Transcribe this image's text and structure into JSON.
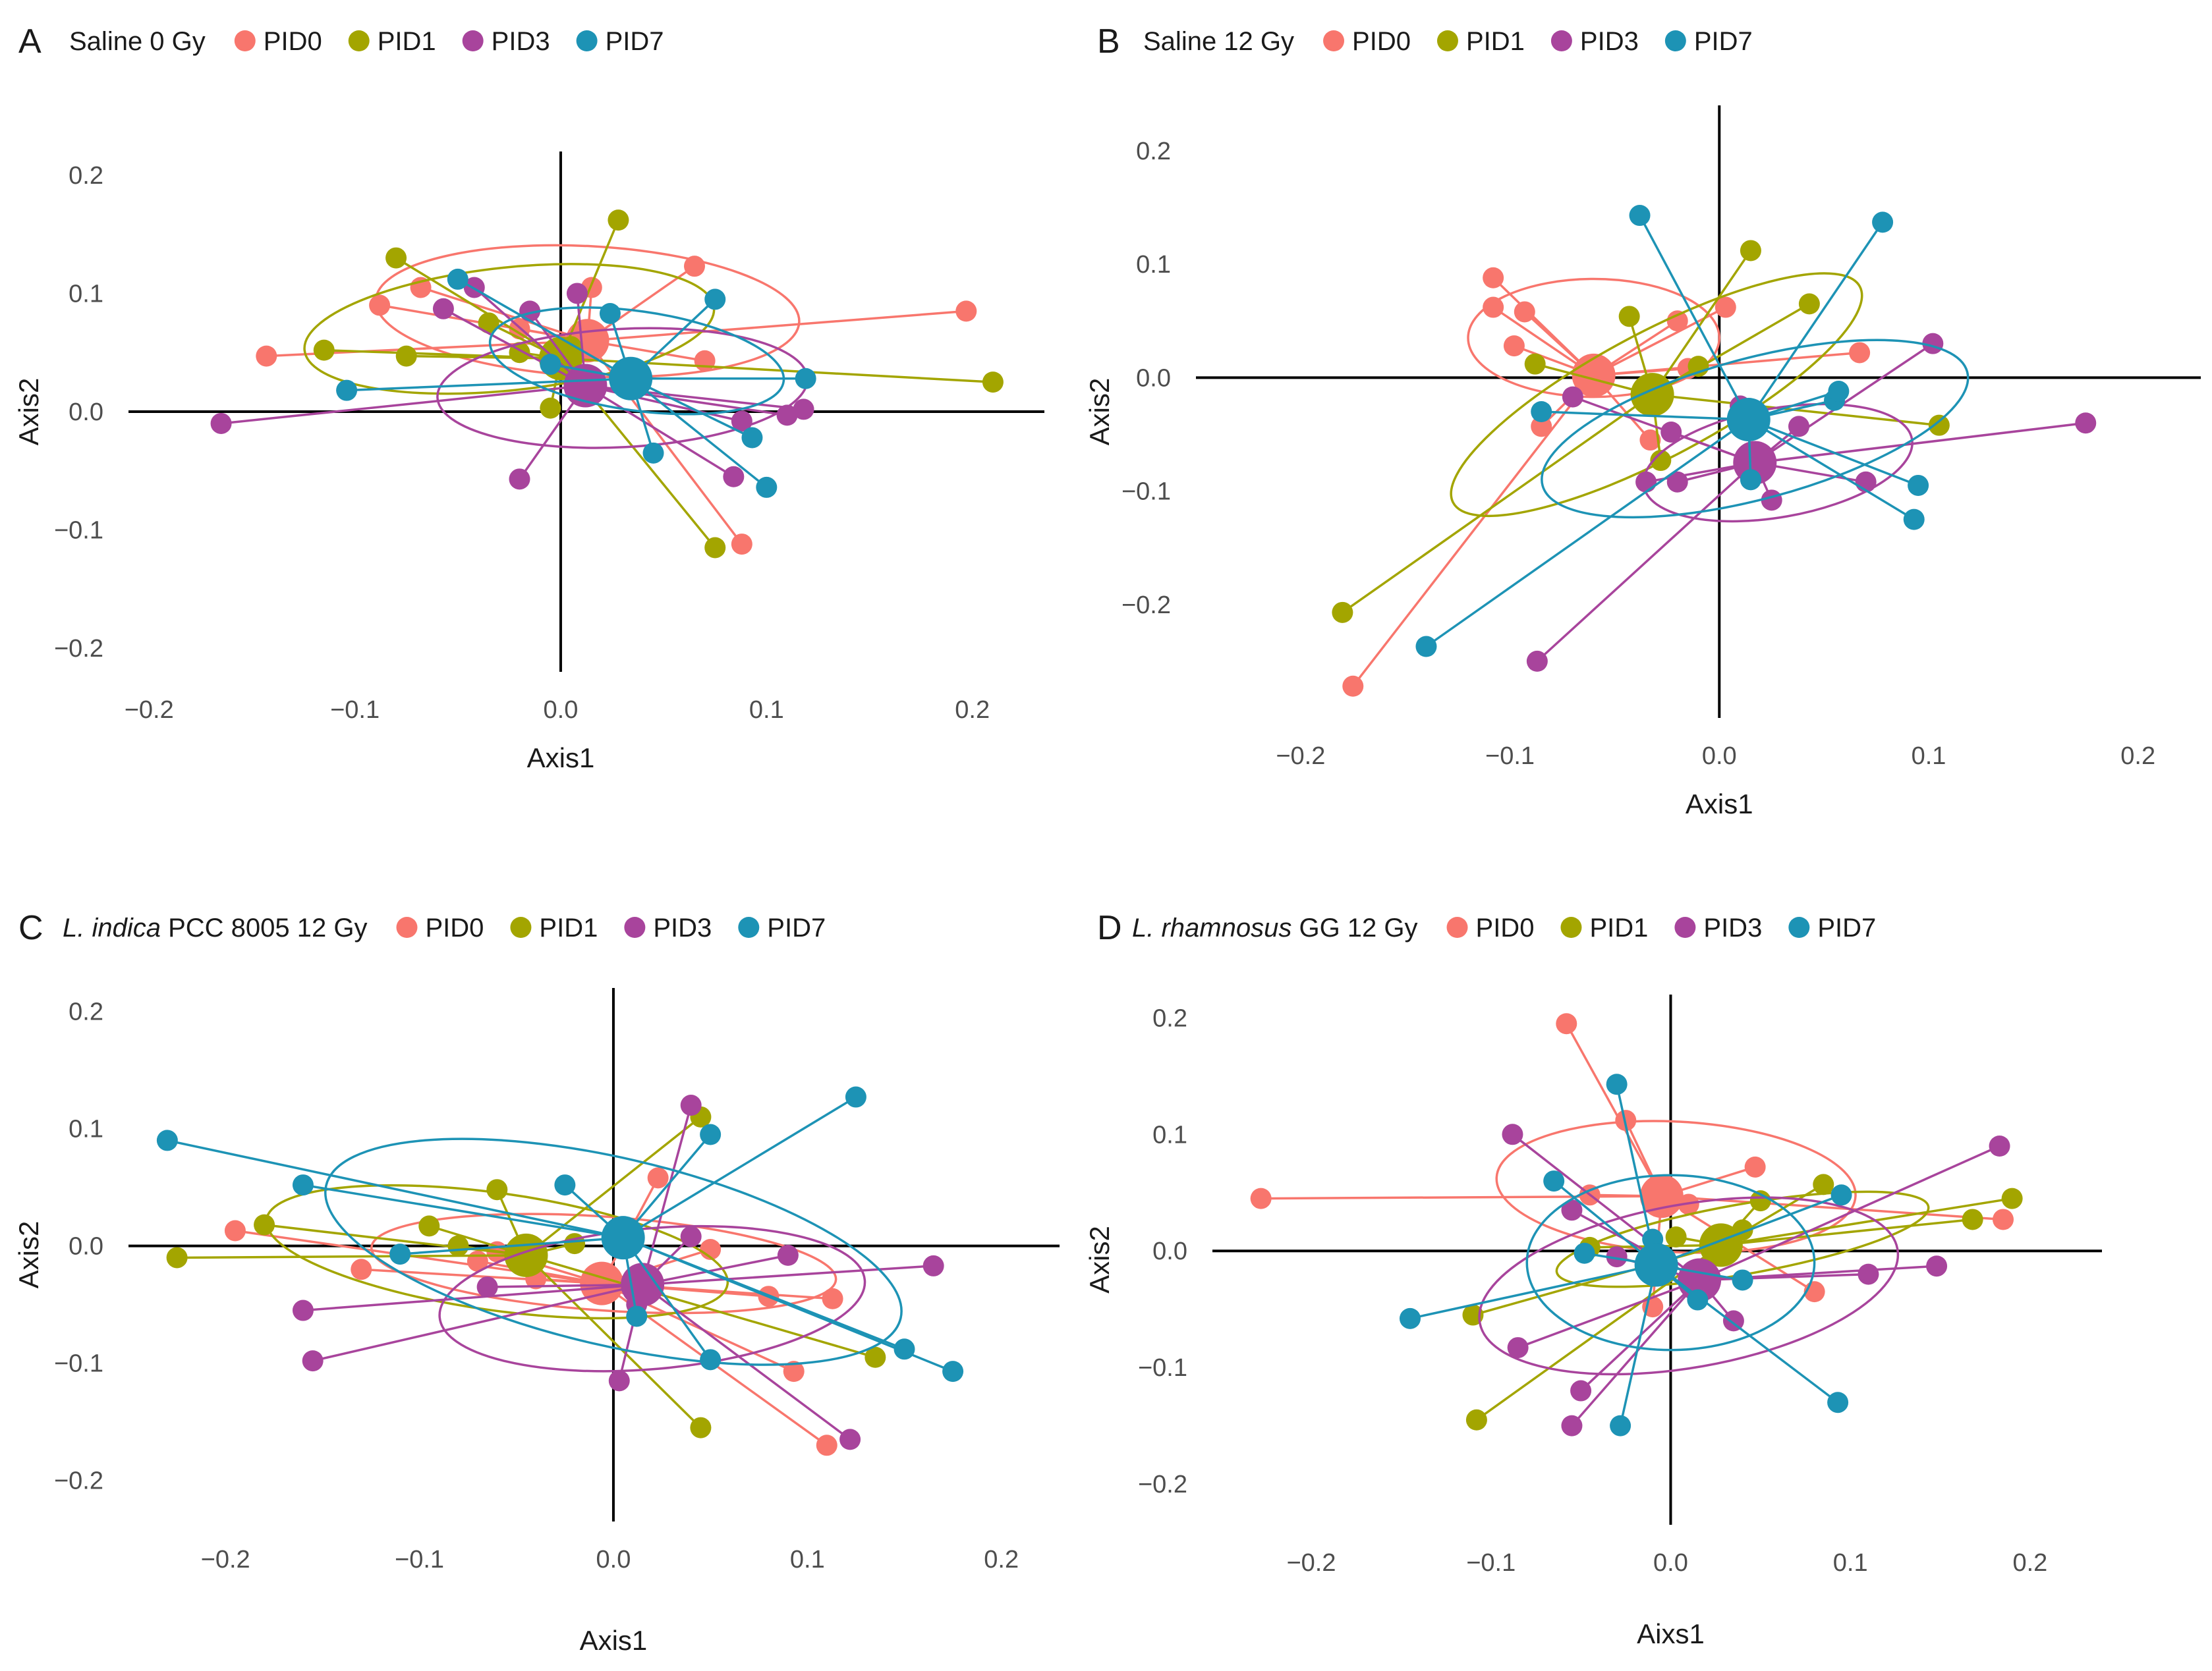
{
  "figure": {
    "colors": {
      "PID0": "#F8766D",
      "PID1": "#A3A500",
      "PID3": "#A8449C",
      "PID7": "#1D93B5"
    },
    "legend_groups": [
      "PID0",
      "PID1",
      "PID3",
      "PID7"
    ]
  },
  "chart_data": [
    {
      "panel": "A",
      "type": "scatter",
      "title_parts": [
        {
          "text": "Saline 0 Gy",
          "italic": false
        }
      ],
      "xlabel": "Axis1",
      "ylabel": "Axis2",
      "xlim": [
        -0.21,
        0.235
      ],
      "ylim": [
        -0.22,
        0.22
      ],
      "xticks": [
        -0.2,
        -0.1,
        0.0,
        0.1,
        0.2
      ],
      "yticks": [
        -0.2,
        -0.1,
        0.0,
        0.1,
        0.2
      ],
      "series": [
        {
          "name": "PID0",
          "centroid": [
            0.013,
            0.06
          ],
          "ellipse": {
            "cx": 0.013,
            "cy": 0.085,
            "rx": 0.103,
            "ry": 0.055,
            "rot": 3
          },
          "points": [
            [
              -0.143,
              0.047
            ],
            [
              -0.088,
              0.09
            ],
            [
              -0.068,
              0.105
            ],
            [
              0.015,
              0.105
            ],
            [
              0.065,
              0.123
            ],
            [
              0.07,
              0.043
            ],
            [
              0.197,
              0.085
            ],
            [
              0.088,
              -0.112
            ],
            [
              0.01,
              0.06
            ],
            [
              -0.02,
              0.07
            ]
          ]
        },
        {
          "name": "PID1",
          "centroid": [
            0.0,
            0.045
          ],
          "ellipse": {
            "cx": -0.025,
            "cy": 0.07,
            "rx": 0.1,
            "ry": 0.052,
            "rot": -6
          },
          "points": [
            [
              -0.115,
              0.052
            ],
            [
              -0.08,
              0.13
            ],
            [
              -0.075,
              0.047
            ],
            [
              -0.02,
              0.05
            ],
            [
              0.028,
              0.162
            ],
            [
              0.075,
              -0.115
            ],
            [
              0.21,
              0.025
            ],
            [
              -0.005,
              0.003
            ],
            [
              0.005,
              0.055
            ],
            [
              -0.035,
              0.075
            ]
          ]
        },
        {
          "name": "PID3",
          "centroid": [
            0.012,
            0.022
          ],
          "ellipse": {
            "cx": 0.03,
            "cy": 0.02,
            "rx": 0.09,
            "ry": 0.05,
            "rot": -3
          },
          "points": [
            [
              -0.165,
              -0.01
            ],
            [
              -0.057,
              0.087
            ],
            [
              -0.042,
              0.105
            ],
            [
              -0.02,
              -0.057
            ],
            [
              0.008,
              0.1
            ],
            [
              0.084,
              -0.055
            ],
            [
              0.088,
              -0.008
            ],
            [
              0.11,
              -0.003
            ],
            [
              0.118,
              0.002
            ],
            [
              -0.015,
              0.085
            ]
          ]
        },
        {
          "name": "PID7",
          "centroid": [
            0.034,
            0.028
          ],
          "ellipse": {
            "cx": 0.037,
            "cy": 0.043,
            "rx": 0.072,
            "ry": 0.042,
            "rot": 8
          },
          "points": [
            [
              -0.104,
              0.018
            ],
            [
              -0.05,
              0.112
            ],
            [
              -0.005,
              0.04
            ],
            [
              0.024,
              0.083
            ],
            [
              0.045,
              -0.035
            ],
            [
              0.075,
              0.095
            ],
            [
              0.093,
              -0.022
            ],
            [
              0.1,
              -0.064
            ],
            [
              0.119,
              0.028
            ]
          ]
        }
      ]
    },
    {
      "panel": "B",
      "type": "scatter",
      "title_parts": [
        {
          "text": "Saline 12 Gy",
          "italic": false
        }
      ],
      "xlabel": "Axis1",
      "ylabel": "Axis2",
      "xlim": [
        -0.25,
        0.23
      ],
      "ylim": [
        -0.3,
        0.24
      ],
      "xticks": [
        -0.2,
        -0.1,
        0.0,
        0.1,
        0.2
      ],
      "yticks": [
        -0.2,
        -0.1,
        0.0,
        0.1,
        0.2
      ],
      "series": [
        {
          "name": "PID0",
          "centroid": [
            -0.06,
            0.002
          ],
          "ellipse": {
            "cx": -0.06,
            "cy": 0.035,
            "rx": 0.06,
            "ry": 0.052,
            "rot": 0
          },
          "points": [
            [
              -0.108,
              0.088
            ],
            [
              -0.098,
              0.028
            ],
            [
              -0.093,
              0.058
            ],
            [
              -0.108,
              0.062
            ],
            [
              -0.02,
              0.05
            ],
            [
              -0.015,
              0.008
            ],
            [
              0.003,
              0.062
            ],
            [
              0.067,
              0.022
            ],
            [
              -0.033,
              -0.055
            ],
            [
              -0.175,
              -0.272
            ],
            [
              -0.085,
              -0.043
            ]
          ]
        },
        {
          "name": "PID1",
          "centroid": [
            -0.032,
            -0.015
          ],
          "ellipse": {
            "cx": -0.03,
            "cy": -0.015,
            "rx": 0.11,
            "ry": 0.055,
            "rot": -28
          },
          "points": [
            [
              -0.18,
              -0.207
            ],
            [
              -0.088,
              0.012
            ],
            [
              -0.043,
              0.054
            ],
            [
              -0.028,
              -0.073
            ],
            [
              0.015,
              0.112
            ],
            [
              0.043,
              0.065
            ],
            [
              0.105,
              -0.042
            ],
            [
              -0.01,
              0.01
            ]
          ]
        },
        {
          "name": "PID3",
          "centroid": [
            0.017,
            -0.075
          ],
          "ellipse": {
            "cx": 0.028,
            "cy": -0.075,
            "rx": 0.065,
            "ry": 0.048,
            "rot": -10
          },
          "points": [
            [
              -0.087,
              -0.25
            ],
            [
              -0.07,
              -0.017
            ],
            [
              -0.035,
              -0.092
            ],
            [
              -0.02,
              -0.092
            ],
            [
              0.01,
              -0.025
            ],
            [
              0.025,
              -0.108
            ],
            [
              0.038,
              -0.043
            ],
            [
              0.07,
              -0.092
            ],
            [
              0.102,
              0.03
            ],
            [
              0.175,
              -0.04
            ],
            [
              -0.023,
              -0.048
            ]
          ]
        },
        {
          "name": "PID7",
          "centroid": [
            0.014,
            -0.037
          ],
          "ellipse": {
            "cx": 0.017,
            "cy": -0.045,
            "rx": 0.105,
            "ry": 0.062,
            "rot": -15
          },
          "points": [
            [
              -0.14,
              -0.237
            ],
            [
              -0.085,
              -0.03
            ],
            [
              -0.038,
              0.143
            ],
            [
              0.015,
              -0.09
            ],
            [
              0.055,
              -0.02
            ],
            [
              0.057,
              -0.012
            ],
            [
              0.078,
              0.137
            ],
            [
              0.093,
              -0.125
            ],
            [
              0.095,
              -0.095
            ],
            [
              0.013,
              -0.03
            ]
          ]
        }
      ]
    },
    {
      "panel": "C",
      "type": "scatter",
      "title_parts": [
        {
          "text": "L. indica",
          "italic": true
        },
        {
          "text": " PCC 8005 12 Gy",
          "italic": false
        }
      ],
      "xlabel": "Axis1",
      "ylabel": "Axis2",
      "xlim": [
        -0.25,
        0.23
      ],
      "ylim": [
        -0.235,
        0.22
      ],
      "xticks": [
        -0.2,
        -0.1,
        0.0,
        0.1,
        0.2
      ],
      "yticks": [
        -0.2,
        -0.1,
        0.0,
        0.1,
        0.2
      ],
      "series": [
        {
          "name": "PID0",
          "centroid": [
            -0.006,
            -0.032
          ],
          "ellipse": {
            "cx": -0.005,
            "cy": -0.015,
            "rx": 0.12,
            "ry": 0.04,
            "rot": 4
          },
          "points": [
            [
              -0.195,
              0.013
            ],
            [
              -0.13,
              -0.02
            ],
            [
              -0.07,
              -0.013
            ],
            [
              -0.06,
              -0.005
            ],
            [
              -0.04,
              -0.028
            ],
            [
              0.023,
              0.058
            ],
            [
              0.05,
              -0.003
            ],
            [
              0.08,
              -0.043
            ],
            [
              0.093,
              -0.107
            ],
            [
              0.113,
              -0.045
            ],
            [
              0.11,
              -0.17
            ],
            [
              -0.005,
              -0.025
            ]
          ]
        },
        {
          "name": "PID1",
          "centroid": [
            -0.045,
            -0.008
          ],
          "ellipse": {
            "cx": -0.06,
            "cy": -0.005,
            "rx": 0.12,
            "ry": 0.05,
            "rot": 8
          },
          "points": [
            [
              -0.225,
              -0.01
            ],
            [
              -0.18,
              0.018
            ],
            [
              -0.095,
              0.017
            ],
            [
              -0.08,
              0.0
            ],
            [
              -0.06,
              0.048
            ],
            [
              0.045,
              0.11
            ],
            [
              0.045,
              -0.155
            ],
            [
              0.135,
              -0.095
            ],
            [
              -0.02,
              0.002
            ]
          ]
        },
        {
          "name": "PID3",
          "centroid": [
            0.015,
            -0.033
          ],
          "ellipse": {
            "cx": 0.02,
            "cy": -0.045,
            "rx": 0.11,
            "ry": 0.06,
            "rot": -5
          },
          "points": [
            [
              -0.16,
              -0.055
            ],
            [
              -0.155,
              -0.098
            ],
            [
              -0.065,
              -0.035
            ],
            [
              0.003,
              -0.115
            ],
            [
              0.04,
              0.12
            ],
            [
              0.04,
              0.008
            ],
            [
              0.09,
              -0.008
            ],
            [
              0.122,
              -0.165
            ],
            [
              0.165,
              -0.017
            ],
            [
              0.012,
              -0.05
            ]
          ]
        },
        {
          "name": "PID7",
          "centroid": [
            0.005,
            0.007
          ],
          "ellipse": {
            "cx": 0.0,
            "cy": -0.005,
            "rx": 0.152,
            "ry": 0.08,
            "rot": 13
          },
          "points": [
            [
              -0.23,
              0.09
            ],
            [
              -0.16,
              0.052
            ],
            [
              -0.11,
              -0.007
            ],
            [
              -0.025,
              0.052
            ],
            [
              0.012,
              -0.06
            ],
            [
              0.05,
              0.095
            ],
            [
              0.05,
              -0.097
            ],
            [
              0.125,
              0.127
            ],
            [
              0.15,
              -0.088
            ],
            [
              0.175,
              -0.107
            ]
          ]
        }
      ]
    },
    {
      "panel": "D",
      "type": "scatter",
      "title_parts": [
        {
          "text": "L. rhamnosus",
          "italic": true
        },
        {
          "text": " GG 12 Gy",
          "italic": false
        }
      ],
      "xlabel": "Aixs1",
      "ylabel": "Axis2",
      "xlim": [
        -0.255,
        0.24
      ],
      "ylim": [
        -0.235,
        0.22
      ],
      "xticks": [
        -0.2,
        -0.1,
        0.0,
        0.1,
        0.2
      ],
      "yticks": [
        -0.2,
        -0.1,
        0.0,
        0.1,
        0.2
      ],
      "series": [
        {
          "name": "PID0",
          "centroid": [
            -0.005,
            0.047
          ],
          "ellipse": {
            "cx": 0.003,
            "cy": 0.055,
            "rx": 0.1,
            "ry": 0.056,
            "rot": 3
          },
          "points": [
            [
              -0.228,
              0.045
            ],
            [
              -0.058,
              0.195
            ],
            [
              -0.025,
              0.112
            ],
            [
              -0.045,
              0.048
            ],
            [
              0.047,
              0.072
            ],
            [
              0.08,
              -0.035
            ],
            [
              0.185,
              0.027
            ],
            [
              -0.01,
              -0.048
            ],
            [
              0.01,
              0.04
            ],
            [
              0.0,
              0.05
            ]
          ]
        },
        {
          "name": "PID1",
          "centroid": [
            0.028,
            0.005
          ],
          "ellipse": {
            "cx": 0.04,
            "cy": 0.01,
            "rx": 0.105,
            "ry": 0.03,
            "rot": -10
          },
          "points": [
            [
              -0.11,
              -0.055
            ],
            [
              -0.108,
              -0.145
            ],
            [
              -0.045,
              0.003
            ],
            [
              0.003,
              0.012
            ],
            [
              0.05,
              0.043
            ],
            [
              0.085,
              0.057
            ],
            [
              0.168,
              0.027
            ],
            [
              0.19,
              0.045
            ],
            [
              0.04,
              0.018
            ]
          ]
        },
        {
          "name": "PID3",
          "centroid": [
            0.016,
            -0.025
          ],
          "ellipse": {
            "cx": 0.01,
            "cy": -0.03,
            "rx": 0.118,
            "ry": 0.07,
            "rot": -10
          },
          "points": [
            [
              -0.088,
              0.1
            ],
            [
              -0.085,
              -0.083
            ],
            [
              -0.055,
              0.035
            ],
            [
              -0.055,
              -0.15
            ],
            [
              -0.05,
              -0.12
            ],
            [
              -0.03,
              -0.005
            ],
            [
              0.035,
              -0.06
            ],
            [
              0.11,
              -0.02
            ],
            [
              0.148,
              -0.013
            ],
            [
              0.183,
              0.09
            ],
            [
              0.02,
              -0.03
            ]
          ]
        },
        {
          "name": "PID7",
          "centroid": [
            -0.008,
            -0.012
          ],
          "ellipse": {
            "cx": 0.0,
            "cy": -0.01,
            "rx": 0.08,
            "ry": 0.075,
            "rot": 0
          },
          "points": [
            [
              -0.145,
              -0.058
            ],
            [
              -0.065,
              0.06
            ],
            [
              -0.048,
              -0.002
            ],
            [
              -0.03,
              0.143
            ],
            [
              -0.028,
              -0.15
            ],
            [
              0.015,
              -0.042
            ],
            [
              0.04,
              -0.025
            ],
            [
              0.095,
              0.048
            ],
            [
              0.093,
              -0.13
            ],
            [
              -0.01,
              0.01
            ]
          ]
        }
      ]
    }
  ]
}
